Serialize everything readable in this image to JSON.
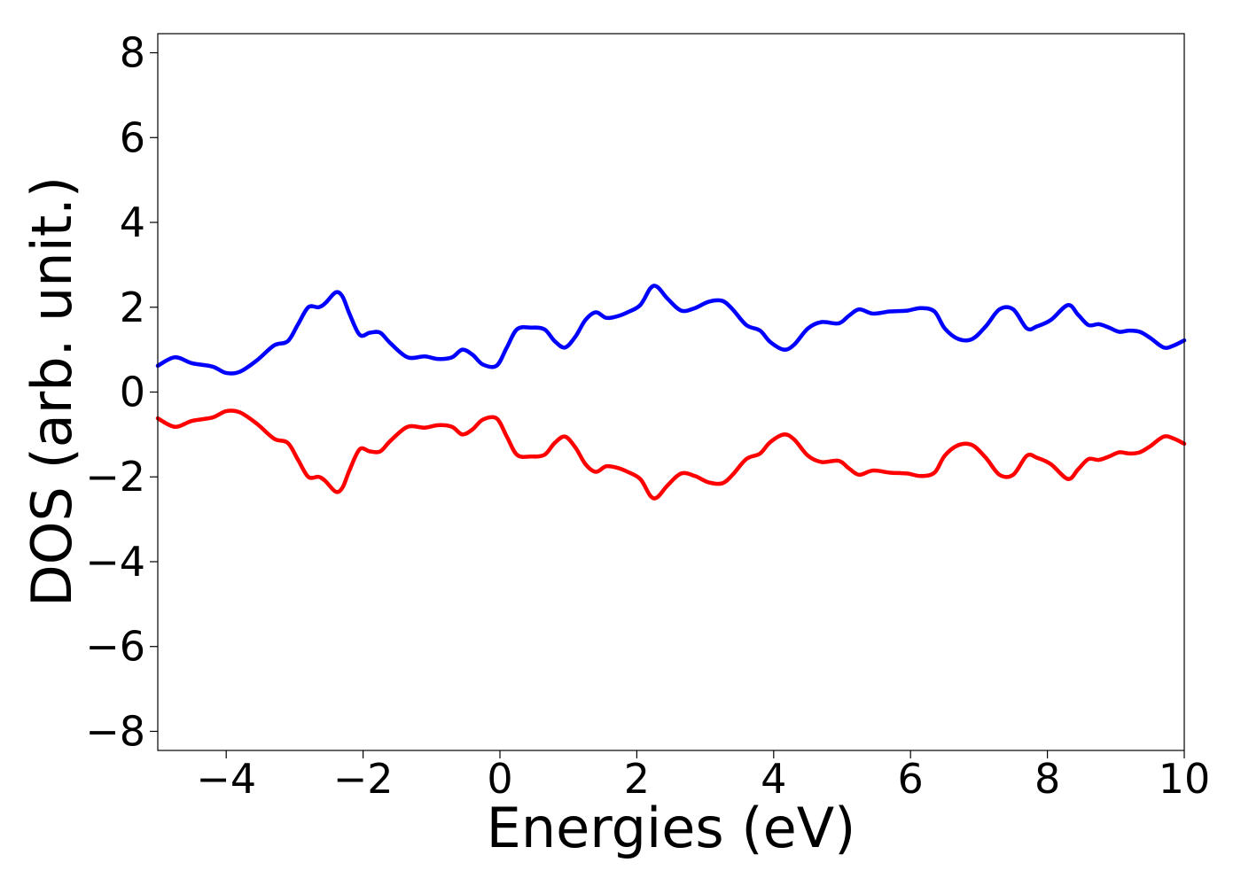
{
  "chart_data": {
    "type": "line",
    "title": "",
    "xlabel": "Energies (eV)",
    "ylabel": "DOS (arb. unit.)",
    "xlim": [
      -5,
      10
    ],
    "ylim": [
      -8.45,
      8.45
    ],
    "xticks": [
      -4,
      -2,
      0,
      2,
      4,
      6,
      8,
      10
    ],
    "xtick_labels": [
      "−4",
      "−2",
      "0",
      "2",
      "4",
      "6",
      "8",
      "10"
    ],
    "yticks": [
      -8,
      -6,
      -4,
      -2,
      0,
      2,
      4,
      6,
      8
    ],
    "ytick_labels": [
      "−8",
      "−6",
      "−4",
      "−2",
      "0",
      "2",
      "4",
      "6",
      "8"
    ],
    "grid": false,
    "legend": null,
    "series": [
      {
        "color": "#0000ff",
        "x": [
          -5.0,
          -4.75,
          -4.5,
          -4.2,
          -4.0,
          -3.8,
          -3.55,
          -3.3,
          -3.1,
          -2.95,
          -2.8,
          -2.65,
          -2.55,
          -2.4,
          -2.3,
          -2.2,
          -2.05,
          -1.9,
          -1.75,
          -1.6,
          -1.35,
          -1.1,
          -0.9,
          -0.7,
          -0.55,
          -0.4,
          -0.25,
          -0.05,
          0.1,
          0.25,
          0.45,
          0.65,
          0.8,
          0.95,
          1.1,
          1.25,
          1.4,
          1.55,
          1.7,
          1.85,
          2.05,
          2.2,
          2.3,
          2.45,
          2.65,
          2.85,
          3.05,
          3.25,
          3.4,
          3.6,
          3.8,
          3.95,
          4.15,
          4.3,
          4.5,
          4.7,
          4.95,
          5.1,
          5.25,
          5.45,
          5.7,
          5.95,
          6.15,
          6.35,
          6.5,
          6.7,
          6.9,
          7.1,
          7.3,
          7.5,
          7.7,
          7.85,
          8.05,
          8.3,
          8.45,
          8.6,
          8.75,
          8.9,
          9.05,
          9.2,
          9.35,
          9.5,
          9.7,
          9.85,
          10.0
        ],
        "y": [
          0.62,
          0.82,
          0.68,
          0.6,
          0.45,
          0.48,
          0.75,
          1.1,
          1.2,
          1.6,
          2.0,
          2.0,
          2.1,
          2.35,
          2.25,
          1.85,
          1.35,
          1.4,
          1.4,
          1.15,
          0.82,
          0.84,
          0.78,
          0.82,
          1.0,
          0.88,
          0.65,
          0.62,
          1.05,
          1.48,
          1.52,
          1.48,
          1.2,
          1.05,
          1.3,
          1.7,
          1.88,
          1.75,
          1.78,
          1.87,
          2.05,
          2.45,
          2.48,
          2.2,
          1.92,
          1.98,
          2.13,
          2.15,
          1.95,
          1.58,
          1.45,
          1.18,
          1.0,
          1.12,
          1.5,
          1.65,
          1.62,
          1.8,
          1.95,
          1.85,
          1.9,
          1.92,
          1.98,
          1.9,
          1.5,
          1.25,
          1.25,
          1.55,
          1.95,
          1.95,
          1.5,
          1.55,
          1.7,
          2.05,
          1.82,
          1.58,
          1.6,
          1.52,
          1.42,
          1.45,
          1.42,
          1.28,
          1.05,
          1.1,
          1.22
        ]
      },
      {
        "color": "#ff0000",
        "x": [
          -5.0,
          -4.75,
          -4.5,
          -4.2,
          -4.0,
          -3.8,
          -3.55,
          -3.3,
          -3.1,
          -2.95,
          -2.8,
          -2.65,
          -2.55,
          -2.4,
          -2.3,
          -2.2,
          -2.05,
          -1.9,
          -1.75,
          -1.6,
          -1.35,
          -1.1,
          -0.9,
          -0.7,
          -0.55,
          -0.4,
          -0.25,
          -0.05,
          0.1,
          0.25,
          0.45,
          0.65,
          0.8,
          0.95,
          1.1,
          1.25,
          1.4,
          1.55,
          1.7,
          1.85,
          2.05,
          2.2,
          2.3,
          2.45,
          2.65,
          2.85,
          3.05,
          3.25,
          3.4,
          3.6,
          3.8,
          3.95,
          4.15,
          4.3,
          4.5,
          4.7,
          4.95,
          5.1,
          5.25,
          5.45,
          5.7,
          5.95,
          6.15,
          6.35,
          6.5,
          6.7,
          6.9,
          7.1,
          7.3,
          7.5,
          7.7,
          7.85,
          8.05,
          8.3,
          8.45,
          8.6,
          8.75,
          8.9,
          9.05,
          9.2,
          9.35,
          9.5,
          9.7,
          9.85,
          10.0
        ],
        "y": [
          -0.62,
          -0.82,
          -0.68,
          -0.6,
          -0.45,
          -0.48,
          -0.75,
          -1.1,
          -1.2,
          -1.6,
          -2.0,
          -2.0,
          -2.1,
          -2.35,
          -2.25,
          -1.85,
          -1.35,
          -1.4,
          -1.4,
          -1.15,
          -0.82,
          -0.84,
          -0.78,
          -0.82,
          -1.0,
          -0.88,
          -0.65,
          -0.62,
          -1.05,
          -1.48,
          -1.52,
          -1.48,
          -1.2,
          -1.05,
          -1.3,
          -1.7,
          -1.88,
          -1.75,
          -1.78,
          -1.87,
          -2.05,
          -2.45,
          -2.48,
          -2.2,
          -1.92,
          -1.98,
          -2.13,
          -2.15,
          -1.95,
          -1.58,
          -1.45,
          -1.18,
          -1.0,
          -1.12,
          -1.5,
          -1.65,
          -1.62,
          -1.8,
          -1.95,
          -1.85,
          -1.9,
          -1.92,
          -1.98,
          -1.9,
          -1.5,
          -1.25,
          -1.25,
          -1.55,
          -1.95,
          -1.95,
          -1.5,
          -1.55,
          -1.7,
          -2.05,
          -1.82,
          -1.58,
          -1.6,
          -1.52,
          -1.42,
          -1.45,
          -1.42,
          -1.28,
          -1.05,
          -1.1,
          -1.22
        ]
      }
    ]
  }
}
